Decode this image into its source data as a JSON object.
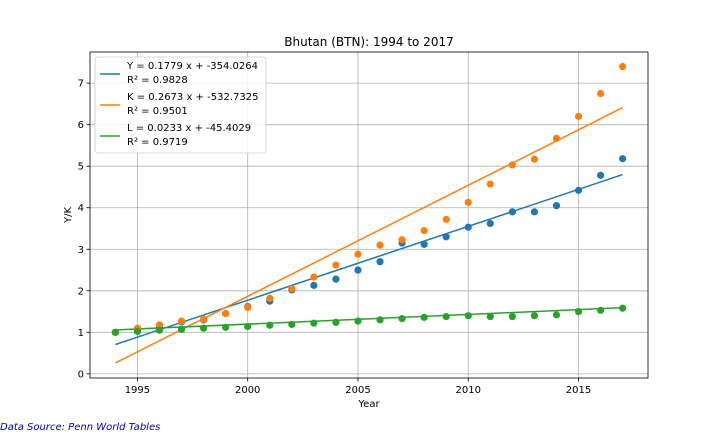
{
  "chart_data": {
    "type": "scatter",
    "title": "Bhutan (BTN): 1994 to 2017",
    "xlabel": "Year",
    "ylabel": "Y/K",
    "xlim": [
      1992.85,
      1993.0
    ],
    "ylim": [
      -0.1,
      7.75
    ],
    "grid": true,
    "legend_position": "upper-left",
    "x_ticks": [
      1995,
      2000,
      2005,
      2010,
      2015
    ],
    "y_ticks": [
      0,
      1,
      2,
      3,
      4,
      5,
      6,
      7
    ],
    "x": [
      1994,
      1995,
      1996,
      1997,
      1998,
      1999,
      2000,
      2001,
      2002,
      2003,
      2004,
      2005,
      2006,
      2007,
      2008,
      2009,
      2010,
      2011,
      2012,
      2013,
      2014,
      2015,
      2016,
      2017
    ],
    "series": [
      {
        "name": "Y",
        "color": "#1f77b4",
        "values": [
          1.0,
          1.05,
          1.12,
          1.25,
          1.3,
          1.45,
          1.62,
          1.75,
          2.02,
          2.13,
          2.28,
          2.5,
          2.7,
          3.15,
          3.12,
          3.3,
          3.53,
          3.62,
          3.9,
          3.9,
          4.05,
          4.42,
          4.78,
          5.18
        ],
        "fit": {
          "slope": 0.1779,
          "intercept": -354.0264
        },
        "legend_label": "Y = 0.1779 x + -354.0264",
        "r2_label": "R² = 0.9828"
      },
      {
        "name": "K",
        "color": "#ff7f0e",
        "values": [
          1.0,
          1.1,
          1.18,
          1.27,
          1.32,
          1.45,
          1.6,
          1.82,
          2.05,
          2.33,
          2.62,
          2.88,
          3.1,
          3.23,
          3.45,
          3.72,
          4.13,
          4.57,
          5.03,
          5.17,
          5.67,
          6.2,
          6.75,
          7.4
        ],
        "fit": {
          "slope": 0.2673,
          "intercept": -532.7325
        },
        "legend_label": "K = 0.2673 x + -532.7325",
        "r2_label": "R² = 0.9501"
      },
      {
        "name": "L",
        "color": "#2ca02c",
        "values": [
          1.0,
          1.02,
          1.05,
          1.07,
          1.1,
          1.12,
          1.14,
          1.17,
          1.19,
          1.22,
          1.24,
          1.27,
          1.3,
          1.33,
          1.36,
          1.38,
          1.4,
          1.38,
          1.38,
          1.4,
          1.42,
          1.5,
          1.53,
          1.58
        ],
        "fit": {
          "slope": 0.0233,
          "intercept": -45.4029
        },
        "legend_label": "L = 0.0233 x + -45.4029",
        "r2_label": "R² = 0.9719"
      }
    ]
  },
  "footer": {
    "source": "Data Source: Penn World Tables"
  }
}
